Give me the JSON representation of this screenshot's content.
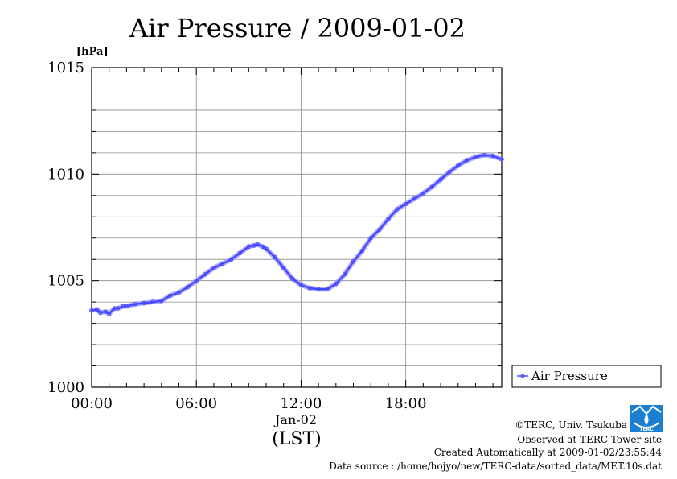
{
  "chart_data": {
    "type": "line",
    "title": "Air Pressure / 2009-01-02",
    "ylabel": "[hPa]",
    "xlabel": "(LST)",
    "x_date_label": "Jan-02",
    "x_ticks": [
      "00:00",
      "06:00",
      "12:00",
      "18:00"
    ],
    "y_ticks": [
      "1000",
      "1005",
      "1010",
      "1015"
    ],
    "ylim": [
      1000,
      1015
    ],
    "xlim_hours": [
      0,
      23.5
    ],
    "grid": true,
    "legend_position": "right-bottom",
    "series": [
      {
        "name": "Air Pressure",
        "color": "#4646ff",
        "x_hours": [
          0,
          0.3,
          0.5,
          0.8,
          1.0,
          1.3,
          1.5,
          1.8,
          2.0,
          2.5,
          3.0,
          3.5,
          4.0,
          4.5,
          5.0,
          5.5,
          6.0,
          6.5,
          7.0,
          7.5,
          8.0,
          8.5,
          9.0,
          9.3,
          9.5,
          9.8,
          10.0,
          10.5,
          11.0,
          11.5,
          12.0,
          12.5,
          13.0,
          13.5,
          14.0,
          14.5,
          15.0,
          15.5,
          16.0,
          16.5,
          17.0,
          17.5,
          18.0,
          18.5,
          19.0,
          19.5,
          20.0,
          20.5,
          21.0,
          21.5,
          22.0,
          22.5,
          23.0,
          23.5
        ],
        "values": [
          1003.6,
          1003.65,
          1003.5,
          1003.55,
          1003.45,
          1003.7,
          1003.7,
          1003.8,
          1003.8,
          1003.9,
          1003.95,
          1004.0,
          1004.05,
          1004.3,
          1004.45,
          1004.7,
          1005.0,
          1005.3,
          1005.6,
          1005.8,
          1006.0,
          1006.3,
          1006.6,
          1006.65,
          1006.7,
          1006.6,
          1006.5,
          1006.1,
          1005.6,
          1005.1,
          1004.8,
          1004.65,
          1004.6,
          1004.6,
          1004.85,
          1005.3,
          1005.9,
          1006.4,
          1007.0,
          1007.4,
          1007.9,
          1008.35,
          1008.6,
          1008.85,
          1009.1,
          1009.4,
          1009.75,
          1010.1,
          1010.4,
          1010.65,
          1010.8,
          1010.9,
          1010.85,
          1010.7
        ]
      }
    ]
  },
  "footer": {
    "copyright": "©TERC, Univ. Tsukuba",
    "observed": "Observed at TERC Tower site",
    "created": "Created Automatically at 2009-01-02/23:55:44",
    "source": "Data source : /home/hojyo/new/TERC-data/sorted_data/MET.10s.dat"
  },
  "logo": {
    "text": "TERC",
    "color": "#1a7fd1"
  }
}
